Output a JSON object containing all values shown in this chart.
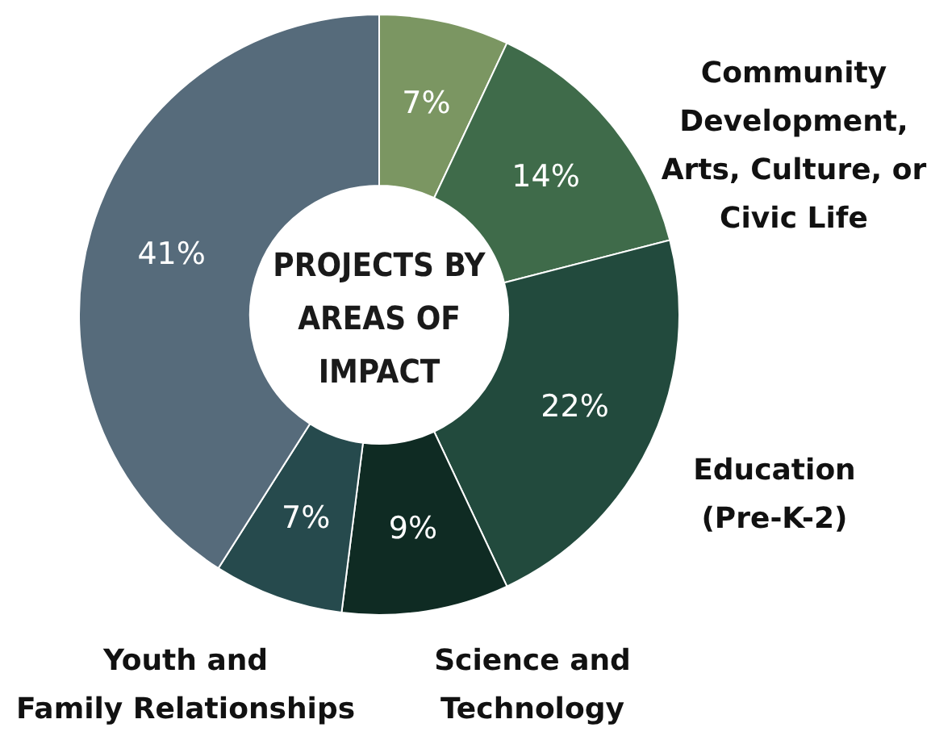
{
  "chart_data": {
    "type": "donut",
    "title": "PROJECTS BY AREAS OF IMPACT",
    "categories": [
      null,
      "Community Development, Arts, Culture, or Civic Life",
      "Education (Pre-K-2)",
      "Science and Technology",
      "Youth and Family Relationships",
      null
    ],
    "values": [
      7,
      14,
      22,
      9,
      7,
      41
    ],
    "value_labels": [
      "7%",
      "14%",
      "22%",
      "9%",
      "7%",
      "41%"
    ],
    "colors": [
      "#7b9662",
      "#3f6b4a",
      "#224a3d",
      "#0f2b23",
      "#264a4d",
      "#566b7b"
    ]
  }
}
